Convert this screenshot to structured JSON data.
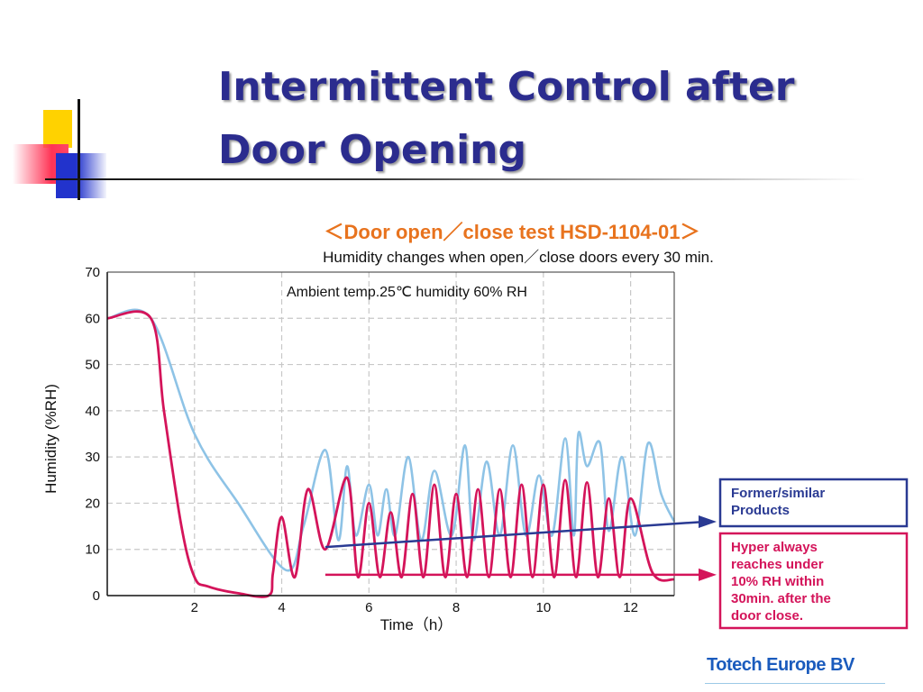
{
  "slide": {
    "title_lines": [
      "Intermittent Control after",
      "Door Opening"
    ],
    "footer_company": "Totech Europe BV",
    "colors": {
      "title": "#2b2c8e",
      "accent_blue": "#2233cc",
      "accent_yellow": "#ffd200",
      "accent_red": "#ff3355"
    }
  },
  "chart_data": {
    "type": "line",
    "title": "＜Door open／close test  HSD-1104-01＞",
    "subtitle": "Humidity changes when open／close doors every 30 min.",
    "annotation": "Ambient temp.25℃ humidity 60% RH",
    "xlabel": "Time（h）",
    "ylabel": "Humidity (%RH)",
    "xlim": [
      0,
      13
    ],
    "ylim": [
      0,
      70
    ],
    "x_ticks": [
      2,
      4,
      6,
      8,
      10,
      12
    ],
    "y_ticks": [
      0,
      10,
      20,
      30,
      40,
      50,
      60,
      70
    ],
    "grid": true,
    "series": [
      {
        "color": "#8ec3e6",
        "x": [
          0,
          1,
          2,
          3,
          4.1,
          4.5,
          5.0,
          5.3,
          5.5,
          5.7,
          6.0,
          6.2,
          6.4,
          6.6,
          6.9,
          7.2,
          7.5,
          7.9,
          8.2,
          8.4,
          8.7,
          9.0,
          9.3,
          9.6,
          9.9,
          10.2,
          10.5,
          10.7,
          10.8,
          11.0,
          11.3,
          11.5,
          11.8,
          12.1,
          12.4,
          12.7,
          13.0
        ],
        "y": [
          60,
          60,
          35,
          20,
          5.5,
          15,
          31.5,
          12,
          28,
          13,
          24,
          13,
          23,
          13,
          30,
          12,
          27,
          13,
          32.5,
          12,
          29,
          13,
          32.5,
          13,
          26,
          13,
          34,
          13,
          35,
          28,
          33,
          14,
          30,
          13,
          33,
          22,
          16
        ]
      },
      {
        "color": "#d4145a",
        "x": [
          0,
          1,
          1.3,
          1.7,
          2.0,
          2.3,
          3.0,
          3.7,
          3.8,
          4.0,
          4.3,
          4.6,
          5.0,
          5.5,
          5.75,
          6.0,
          6.25,
          6.5,
          6.75,
          7.0,
          7.25,
          7.5,
          7.75,
          8.0,
          8.25,
          8.5,
          8.75,
          9.0,
          9.25,
          9.5,
          9.75,
          10.0,
          10.25,
          10.5,
          10.75,
          11.0,
          11.25,
          11.5,
          11.75,
          12.0,
          12.5,
          13.0
        ],
        "y": [
          60,
          60,
          40,
          15,
          4,
          2,
          0.5,
          0,
          5,
          17,
          4,
          23,
          10,
          25.5,
          4,
          20,
          4,
          18,
          4,
          22,
          4,
          24,
          4,
          22,
          4,
          23,
          4,
          23,
          4,
          24,
          4,
          24,
          4,
          25,
          4,
          24.5,
          4,
          21,
          4,
          21,
          5,
          3.5
        ]
      }
    ],
    "callouts": [
      {
        "text_lines": [
          "Former/similar",
          "Products"
        ],
        "color": "#2a3a93"
      },
      {
        "text_lines": [
          "Hyper always",
          "reaches under",
          "10% RH within",
          "30min. after the",
          "door close."
        ],
        "color": "#d4145a"
      }
    ]
  }
}
